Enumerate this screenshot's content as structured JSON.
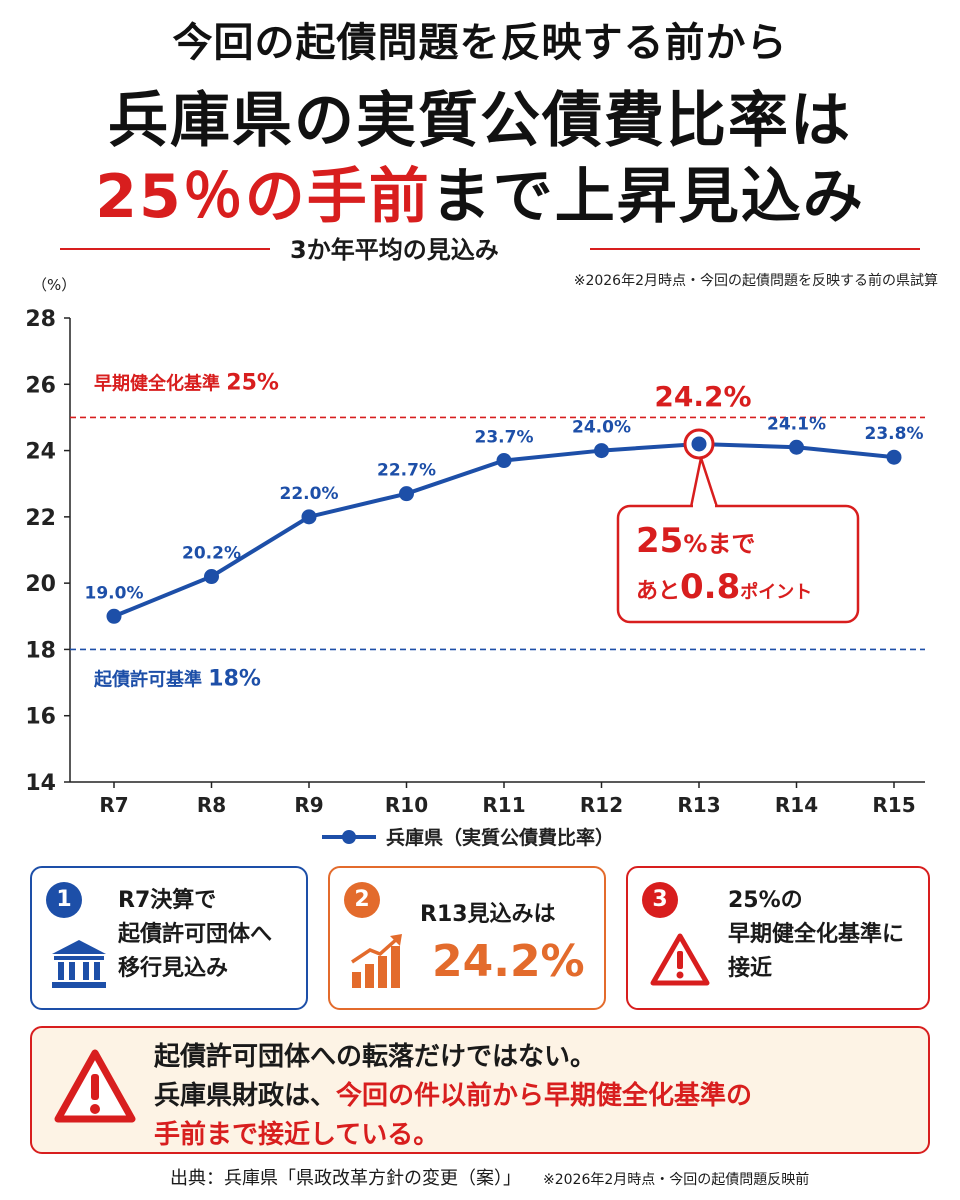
{
  "headline": {
    "line1": "今回の起債問題を反映する前から",
    "line2": "兵庫県の実質公債費比率は",
    "line3_red": "25％の手前",
    "line3_rest": "まで上昇見込み"
  },
  "subtitle": "3か年平均の見込み",
  "note_top": "※2026年2月時点・今回の起債問題を反映する前の県試算",
  "chart_data": {
    "type": "line",
    "unit_label": "（%）",
    "categories": [
      "R7",
      "R8",
      "R9",
      "R10",
      "R11",
      "R12",
      "R13",
      "R14",
      "R15"
    ],
    "series": [
      {
        "name": "兵庫県（実質公債費比率）",
        "values": [
          19.0,
          20.2,
          22.0,
          22.7,
          23.7,
          24.0,
          24.2,
          24.1,
          23.8
        ],
        "color": "#1d4fa8"
      }
    ],
    "data_labels": [
      "19.0%",
      "20.2%",
      "22.0%",
      "22.7%",
      "23.7%",
      "24.0%",
      "24.2%",
      "24.1%",
      "23.8%"
    ],
    "ylim": [
      14,
      28
    ],
    "yticks": [
      14,
      16,
      18,
      20,
      22,
      24,
      26,
      28
    ],
    "ytick_labels": [
      "14",
      "16",
      "18",
      "20",
      "22",
      "24",
      "26",
      "28"
    ],
    "grid": false,
    "legend_position": "bottom",
    "reference_lines": [
      {
        "value": 25,
        "label": "早期健全化基準",
        "label_value": "25%",
        "color": "#d81e1e"
      },
      {
        "value": 18,
        "label": "起債許可基準",
        "label_value": "18%",
        "color": "#1d4fa8"
      }
    ],
    "highlight": {
      "index": 6,
      "label": "24.2%",
      "callout_line1": "25%まで",
      "callout_line2_pre": "あと",
      "callout_line2_num": "0.8",
      "callout_line2_post": "ポイント"
    }
  },
  "cards": [
    {
      "number": "1",
      "lines": [
        "R7決算で",
        "起債許可団体へ",
        "移行見込み"
      ],
      "icon": "bank-icon",
      "color": "#1d4fa8"
    },
    {
      "number": "2",
      "line": "R13見込みは",
      "big": "24.2%",
      "icon": "growth-chart-icon",
      "color": "#e36b2c"
    },
    {
      "number": "3",
      "lines": [
        "25%の",
        "早期健全化基準に",
        "接近"
      ],
      "icon": "warning-icon",
      "color": "#d81e1e"
    }
  ],
  "summary": {
    "line1": "起債許可団体への転落だけではない。",
    "line2_black": "兵庫県財政は、",
    "line2_red": "今回の件以前から早期健全化基準の",
    "line3": "手前まで接近している。"
  },
  "source": {
    "main": "出典：兵庫県「県政改革方針の変更（案）」",
    "small": "※2026年2月時点・今回の起債問題反映前"
  }
}
